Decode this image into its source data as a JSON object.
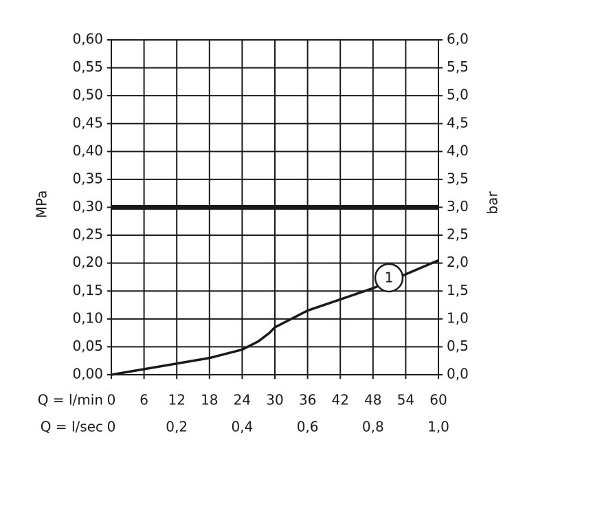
{
  "chart_data": {
    "type": "line",
    "xlabel": "Q = l/min",
    "x2label": "Q = l/sec",
    "ylabel": "MPa",
    "y2label": "bar",
    "xlim": [
      0,
      60
    ],
    "xticks": [
      0,
      6,
      12,
      18,
      24,
      30,
      36,
      42,
      48,
      54,
      60
    ],
    "x2lim": [
      0,
      1
    ],
    "x2ticks": [
      0,
      {
        "value": 0.2,
        "label": "0,2"
      },
      {
        "value": 0.4,
        "label": "0,4"
      },
      {
        "value": 0.6,
        "label": "0,6"
      },
      {
        "value": 0.8,
        "label": "0,8"
      },
      {
        "value": 1,
        "label": "1,0"
      }
    ],
    "ylim": [
      0,
      0.6
    ],
    "yticks": [
      {
        "value": 0,
        "label": "0,00"
      },
      {
        "value": 0.05,
        "label": "0,05"
      },
      {
        "value": 0.1,
        "label": "0,10"
      },
      {
        "value": 0.15,
        "label": "0,15"
      },
      {
        "value": 0.2,
        "label": "0,20"
      },
      {
        "value": 0.25,
        "label": "0,25"
      },
      {
        "value": 0.3,
        "label": "0,30"
      },
      {
        "value": 0.35,
        "label": "0,35"
      },
      {
        "value": 0.4,
        "label": "0,40"
      },
      {
        "value": 0.45,
        "label": "0,45"
      },
      {
        "value": 0.5,
        "label": "0,50"
      },
      {
        "value": 0.55,
        "label": "0,55"
      },
      {
        "value": 0.6,
        "label": "0,60"
      }
    ],
    "y2lim": [
      0,
      6
    ],
    "y2ticks": [
      {
        "value": 0,
        "label": "0,0"
      },
      {
        "value": 0.5,
        "label": "0,5"
      },
      {
        "value": 1,
        "label": "1,0"
      },
      {
        "value": 1.5,
        "label": "1,5"
      },
      {
        "value": 2,
        "label": "2,0"
      },
      {
        "value": 2.5,
        "label": "2,5"
      },
      {
        "value": 3,
        "label": "3,0"
      },
      {
        "value": 3.5,
        "label": "3,5"
      },
      {
        "value": 4,
        "label": "4,0"
      },
      {
        "value": 4.5,
        "label": "4,5"
      },
      {
        "value": 5,
        "label": "5,0"
      },
      {
        "value": 5.5,
        "label": "5,5"
      },
      {
        "value": 6,
        "label": "6,0"
      }
    ],
    "grid": true,
    "reference_line": 0.3,
    "series": [
      {
        "name": "1",
        "color": "#1a1a1a",
        "x": [
          0,
          6,
          12,
          18,
          24,
          27,
          29,
          30,
          33,
          36,
          42,
          48,
          54,
          60
        ],
        "values": [
          0,
          0.01,
          0.02,
          0.03,
          0.045,
          0.06,
          0.075,
          0.085,
          0.1,
          0.115,
          0.135,
          0.155,
          0.18,
          0.205
        ]
      }
    ]
  }
}
